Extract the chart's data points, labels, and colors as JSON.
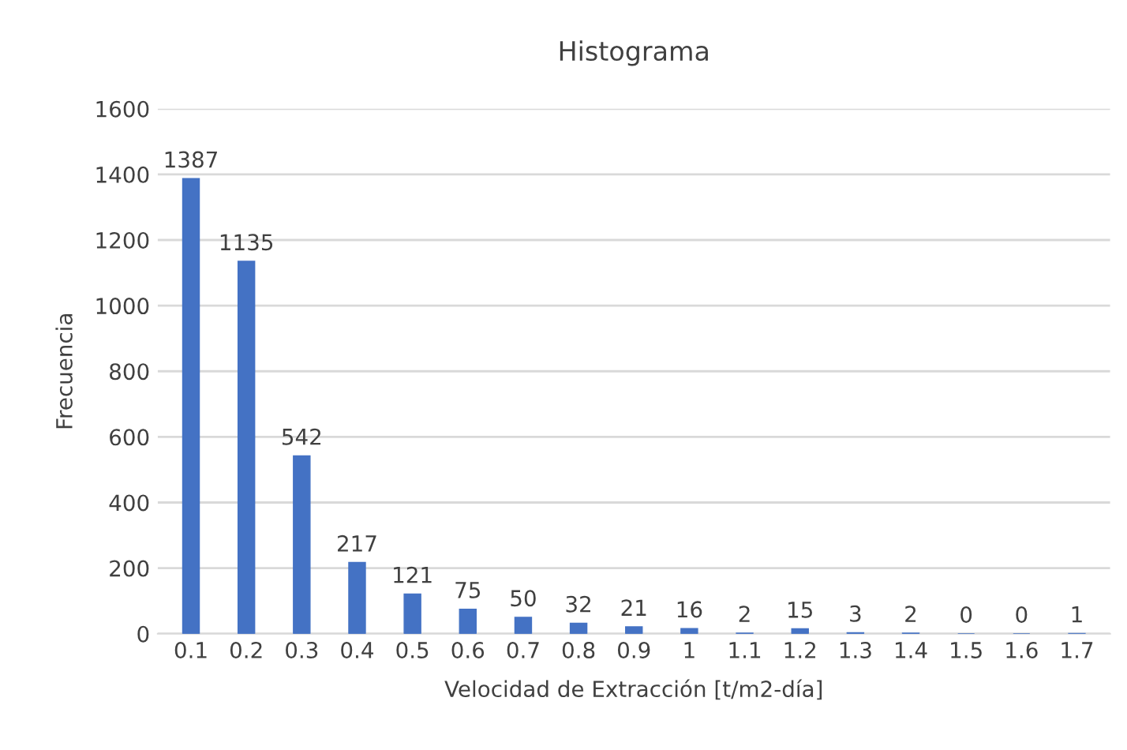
{
  "chart_data": {
    "type": "bar",
    "title": "Histograma",
    "xlabel": "Velocidad de Extracción [t/m2-día]",
    "ylabel": "Frecuencia",
    "categories": [
      "0.1",
      "0.2",
      "0.3",
      "0.4",
      "0.5",
      "0.6",
      "0.7",
      "0.8",
      "0.9",
      "1",
      "1.1",
      "1.2",
      "1.3",
      "1.4",
      "1.5",
      "1.6",
      "1.7"
    ],
    "values": [
      1387,
      1135,
      542,
      217,
      121,
      75,
      50,
      32,
      21,
      16,
      2,
      15,
      3,
      2,
      0,
      0,
      1
    ],
    "color": "#4472c4",
    "ylim": [
      0,
      1600
    ],
    "yticks": [
      0,
      200,
      400,
      600,
      800,
      1000,
      1200,
      1400,
      1600
    ],
    "grid": "y",
    "data_labels": true
  }
}
